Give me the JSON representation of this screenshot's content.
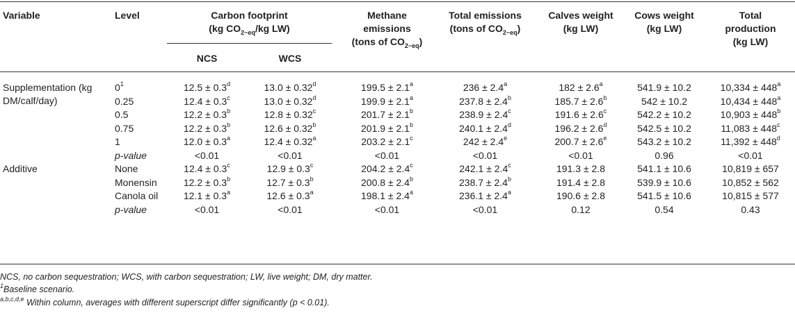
{
  "headers": {
    "variable": "Variable",
    "level": "Level",
    "carbon_line1": "Carbon footprint",
    "carbon_line2_pre": "(kg CO",
    "carbon_line2_sub": "2−eq",
    "carbon_line2_post": "/kg LW)",
    "ncs": "NCS",
    "wcs": "WCS",
    "methane_line1": "Methane",
    "methane_line2": "emissions",
    "methane_line3_pre": "(tons of CO",
    "methane_line3_sub": "2−eq",
    "methane_line3_post": ")",
    "total_line1": "Total emissions",
    "total_line2_pre": "(tons of CO",
    "total_line2_sub": "2−eq",
    "total_line2_post": ")",
    "calves_line1": "Calves weight",
    "calves_line2": "(kg LW)",
    "cows_line1": "Cows weight",
    "cows_line2": "(kg LW)",
    "prod_line1": "Total",
    "prod_line2": "production",
    "prod_line3": "(kg LW)"
  },
  "rows": [
    {
      "variable": "Supplementation (kg DM/calf/day)",
      "level": "0",
      "level_sup": "1",
      "level_italic": false,
      "ncs": "12.5 ± 0.3",
      "ncs_sup": "d",
      "wcs": "13.0 ± 0.32",
      "wcs_sup": "d",
      "methane": "199.5 ± 2.1",
      "methane_sup": "a",
      "total": "236 ± 2.4",
      "total_sup": "a",
      "calves": "182 ± 2.6",
      "calves_sup": "a",
      "cows": "541.9 ± 10.2",
      "cows_sup": "",
      "prod": "10,334 ± 448",
      "prod_sup": "a"
    },
    {
      "variable": "",
      "level": "0.25",
      "level_sup": "",
      "level_italic": false,
      "ncs": "12.4 ± 0.3",
      "ncs_sup": "c",
      "wcs": "13.0 ± 0.32",
      "wcs_sup": "d",
      "methane": "199.9 ± 2.1",
      "methane_sup": "a",
      "total": "237.8 ± 2.4",
      "total_sup": "b",
      "calves": "185.7 ± 2.6",
      "calves_sup": "b",
      "cows": "542 ± 10.2",
      "cows_sup": "",
      "prod": "10,434 ± 448",
      "prod_sup": "a"
    },
    {
      "variable": "",
      "level": "0.5",
      "level_sup": "",
      "level_italic": false,
      "ncs": "12.2 ± 0.3",
      "ncs_sup": "b",
      "wcs": "12.8 ± 0.32",
      "wcs_sup": "c",
      "methane": "201.7 ± 2.1",
      "methane_sup": "b",
      "total": "238.9 ± 2.4",
      "total_sup": "c",
      "calves": "191.6 ± 2.6",
      "calves_sup": "c",
      "cows": "542.2 ± 10.2",
      "cows_sup": "",
      "prod": "10,903 ± 448",
      "prod_sup": "b"
    },
    {
      "variable": "",
      "level": "0.75",
      "level_sup": "",
      "level_italic": false,
      "ncs": "12.2 ± 0.3",
      "ncs_sup": "b",
      "wcs": "12.6 ± 0.32",
      "wcs_sup": "b",
      "methane": "201.9 ± 2.1",
      "methane_sup": "b",
      "total": "240.1 ± 2.4",
      "total_sup": "d",
      "calves": "196.2 ± 2.6",
      "calves_sup": "d",
      "cows": "542.5 ± 10.2",
      "cows_sup": "",
      "prod": "11,083 ± 448",
      "prod_sup": "c"
    },
    {
      "variable": "",
      "level": "1",
      "level_sup": "",
      "level_italic": false,
      "ncs": "12.0 ± 0.3",
      "ncs_sup": "a",
      "wcs": "12.4 ± 0.32",
      "wcs_sup": "a",
      "methane": "203.2 ± 2.1",
      "methane_sup": "c",
      "total": "242 ± 2.4",
      "total_sup": "e",
      "calves": "200.7 ± 2.6",
      "calves_sup": "e",
      "cows": "543.2 ± 10.2",
      "cows_sup": "",
      "prod": "11,392 ± 448",
      "prod_sup": "d"
    },
    {
      "variable": "",
      "level": "p-value",
      "level_sup": "",
      "level_italic": true,
      "ncs": "<0.01",
      "ncs_sup": "",
      "wcs": "<0.01",
      "wcs_sup": "",
      "methane": "<0.01",
      "methane_sup": "",
      "total": "<0.01",
      "total_sup": "",
      "calves": "<0.01",
      "calves_sup": "",
      "cows": "0.96",
      "cows_sup": "",
      "prod": "<0.01",
      "prod_sup": ""
    },
    {
      "variable": "Additive",
      "level": "None",
      "level_sup": "",
      "level_italic": false,
      "ncs": "12.4 ± 0.3",
      "ncs_sup": "c",
      "wcs": "12.9 ± 0.3",
      "wcs_sup": "c",
      "methane": "204.2 ± 2.4",
      "methane_sup": "c",
      "total": "242.1 ± 2.4",
      "total_sup": "c",
      "calves": "191.3 ± 2.8",
      "calves_sup": "",
      "cows": "541.1 ± 10.6",
      "cows_sup": "",
      "prod": "10,819 ± 657",
      "prod_sup": ""
    },
    {
      "variable": "",
      "level": "Monensin",
      "level_sup": "",
      "level_italic": false,
      "ncs": "12.2 ± 0.3",
      "ncs_sup": "b",
      "wcs": "12.7 ± 0.3",
      "wcs_sup": "b",
      "methane": "200.8 ± 2.4",
      "methane_sup": "b",
      "total": "238.7 ± 2.4",
      "total_sup": "b",
      "calves": "191.4 ± 2.8",
      "calves_sup": "",
      "cows": "539.9 ± 10.6",
      "cows_sup": "",
      "prod": "10,852 ± 562",
      "prod_sup": ""
    },
    {
      "variable": "",
      "level": "Canola oil",
      "level_sup": "",
      "level_italic": false,
      "ncs": "12.1 ± 0.3",
      "ncs_sup": "a",
      "wcs": "12.6 ± 0.3",
      "wcs_sup": "a",
      "methane": "198.1 ± 2.4",
      "methane_sup": "a",
      "total": "236.1 ± 2.4",
      "total_sup": "a",
      "calves": "190.6 ± 2.8",
      "calves_sup": "",
      "cows": "541.5 ± 10.6",
      "cows_sup": "",
      "prod": "10,815 ± 577",
      "prod_sup": ""
    },
    {
      "variable": "",
      "level": "p-value",
      "level_sup": "",
      "level_italic": true,
      "ncs": "<0.01",
      "ncs_sup": "",
      "wcs": "<0.01",
      "wcs_sup": "",
      "methane": "<0.01",
      "methane_sup": "",
      "total": "<0.01",
      "total_sup": "",
      "calves": "0.12",
      "calves_sup": "",
      "cows": "0.54",
      "cows_sup": "",
      "prod": "0.43",
      "prod_sup": ""
    }
  ],
  "footnotes": {
    "abbrev": "NCS, no carbon sequestration; WCS, with carbon sequestration; LW, live weight; DM, dry matter.",
    "note1_mark": "1",
    "note1_text": "Baseline scenario.",
    "note2_mark": "a,b,c,d,e",
    "note2_text": " Within column, averages with different superscript differ significantly (p < 0.01)."
  }
}
